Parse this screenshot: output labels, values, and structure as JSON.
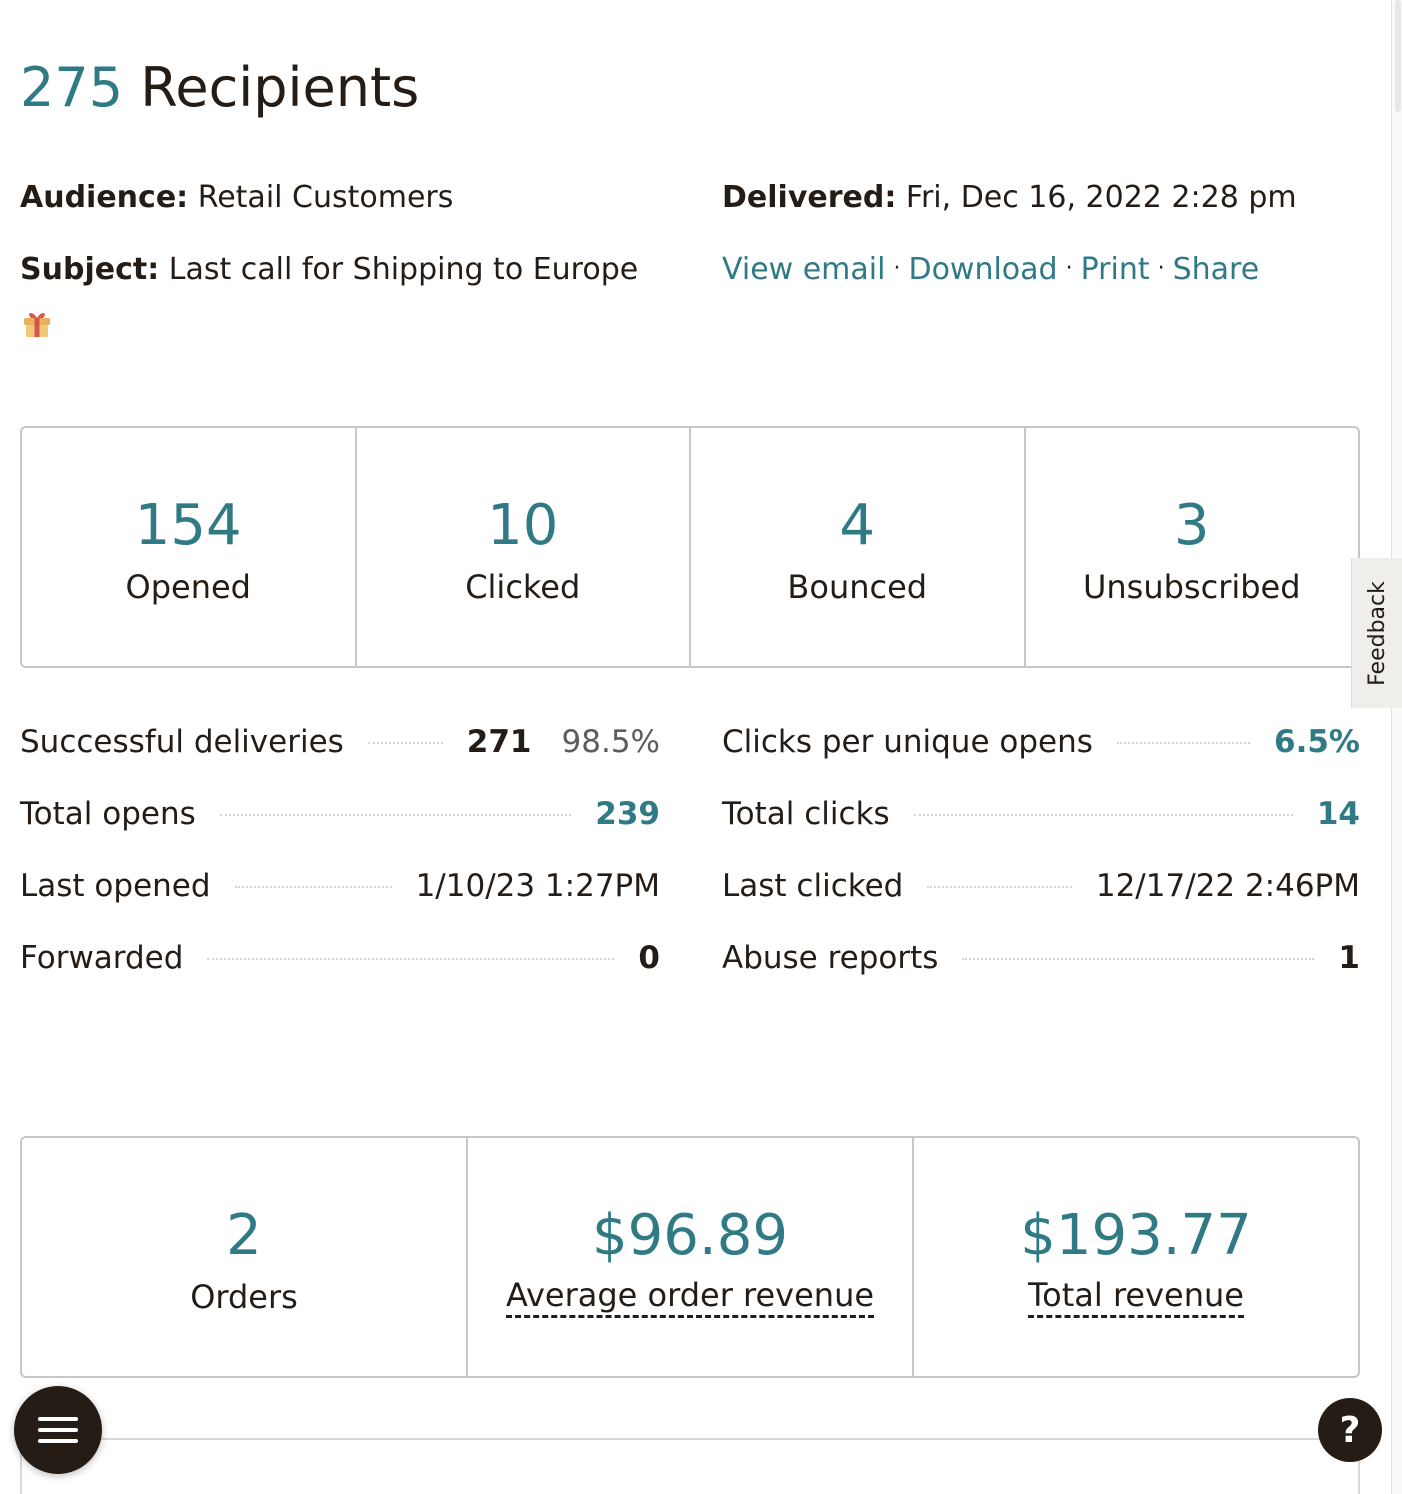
{
  "header": {
    "recipient_count": "275",
    "recipient_label": "Recipients"
  },
  "meta": {
    "audience_label": "Audience:",
    "audience_value": "Retail Customers",
    "subject_label": "Subject:",
    "subject_value": "Last call for Shipping to Europe",
    "subject_emoji": "gift-icon",
    "delivered_label": "Delivered:",
    "delivered_value": "Fri, Dec 16, 2022 2:28 pm",
    "links": [
      "View email",
      "Download",
      "Print",
      "Share"
    ],
    "link_separator": "·"
  },
  "summary": [
    {
      "value": "154",
      "label": "Opened"
    },
    {
      "value": "10",
      "label": "Clicked"
    },
    {
      "value": "4",
      "label": "Bounced"
    },
    {
      "value": "3",
      "label": "Unsubscribed"
    }
  ],
  "metrics_left": [
    {
      "label": "Successful deliveries",
      "value": "271",
      "extra": "98.5%"
    },
    {
      "label": "Total opens",
      "value": "239"
    },
    {
      "label": "Last opened",
      "value": "1/10/23 1:27PM"
    },
    {
      "label": "Forwarded",
      "value": "0"
    }
  ],
  "metrics_right": [
    {
      "label": "Clicks per unique opens",
      "value": "6.5%"
    },
    {
      "label": "Total clicks",
      "value": "14"
    },
    {
      "label": "Last clicked",
      "value": "12/17/22 2:46PM"
    },
    {
      "label": "Abuse reports",
      "value": "1"
    }
  ],
  "revenue": [
    {
      "value": "2",
      "label": "Orders"
    },
    {
      "value": "$96.89",
      "label": "Average order revenue"
    },
    {
      "value": "$193.77",
      "label": "Total revenue"
    }
  ],
  "feedback_label": "Feedback",
  "help_label": "?",
  "colors": {
    "accent": "#2f7a85",
    "text": "#241c15",
    "border": "#c7c7c7",
    "button_dark": "#241c15"
  }
}
